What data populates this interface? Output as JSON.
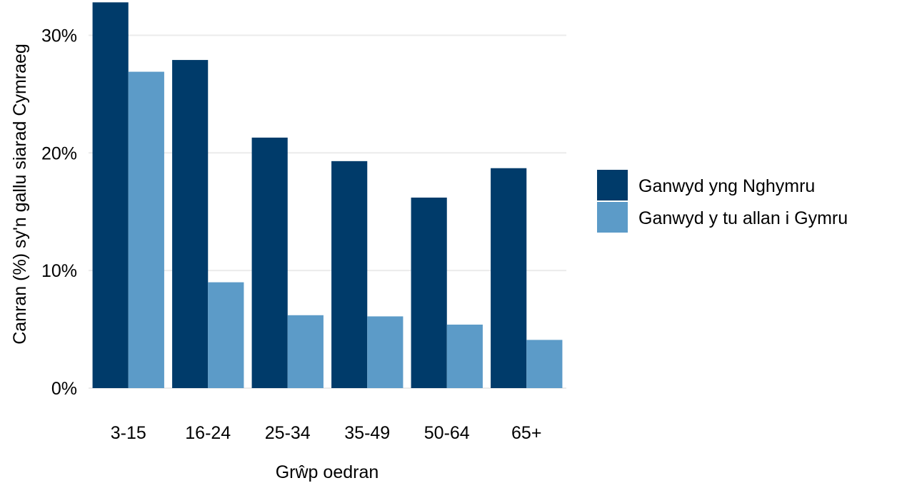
{
  "chart_data": {
    "type": "bar",
    "title": "",
    "xlabel": "Grŵp oedran",
    "ylabel": "Canran (%) sy'n gallu siarad Cymraeg",
    "categories": [
      "3-15",
      "16-24",
      "25-34",
      "35-49",
      "50-64",
      "65+"
    ],
    "series": [
      {
        "name": "Ganwyd yng Nghymru",
        "color": "#003b6a",
        "values": [
          32.8,
          27.9,
          21.3,
          19.3,
          16.2,
          18.7
        ]
      },
      {
        "name": "Ganwyd y tu allan i Gymru",
        "color": "#5c9bc8",
        "values": [
          26.9,
          9.0,
          6.2,
          6.1,
          5.4,
          4.1
        ]
      }
    ],
    "ylim": [
      0,
      33
    ],
    "y_ticks": [
      0,
      10,
      20,
      30
    ],
    "y_tick_labels": [
      "0%",
      "10%",
      "20%",
      "30%"
    ],
    "grid": true,
    "legend_position": "right"
  }
}
